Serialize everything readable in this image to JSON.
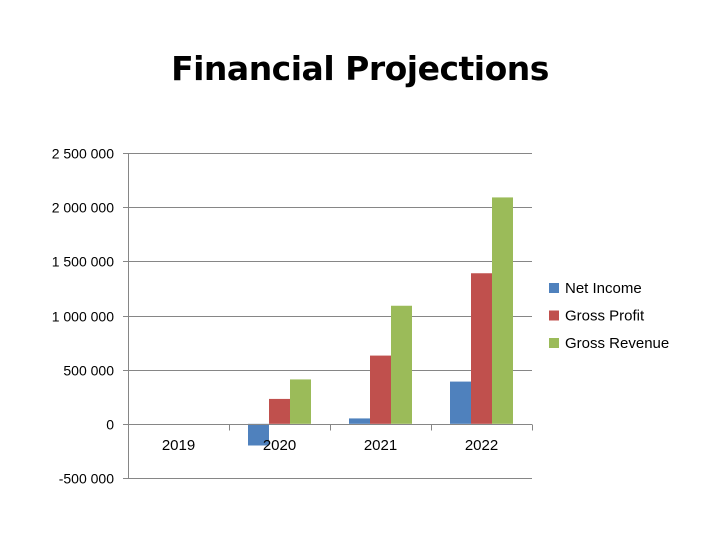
{
  "chart_data": {
    "type": "bar",
    "title": "Financial Projections",
    "categories": [
      "2019",
      "2020",
      "2021",
      "2022"
    ],
    "series": [
      {
        "name": "Net Income",
        "color": "#4f81bd",
        "values": [
          0,
          -200000,
          50000,
          390000
        ]
      },
      {
        "name": "Gross Profit",
        "color": "#c0504d",
        "values": [
          0,
          230000,
          630000,
          1390000
        ]
      },
      {
        "name": "Gross Revenue",
        "color": "#9bbb59",
        "values": [
          0,
          410000,
          1090000,
          2090000
        ]
      }
    ],
    "yticks": [
      "2 500 000",
      "2 000 000",
      "1 500 000",
      "1 000 000",
      "500 000",
      "0",
      "-500 000"
    ],
    "ytick_values": [
      2500000,
      2000000,
      1500000,
      1000000,
      500000,
      0,
      -500000
    ],
    "ylim": [
      -500000,
      2500000
    ],
    "grid": true,
    "legend_position": "right"
  }
}
